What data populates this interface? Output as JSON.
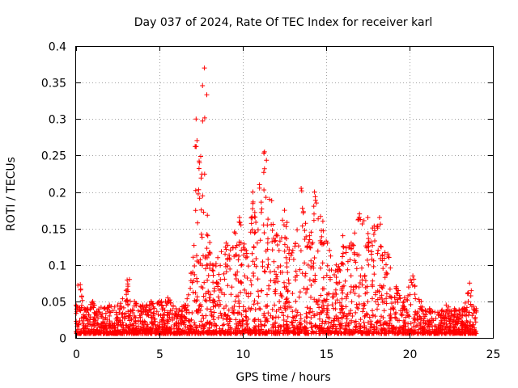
{
  "chart_data": {
    "type": "scatter",
    "title": "Day 037 of 2024, Rate Of TEC Index for receiver karl",
    "xlabel": "GPS time / hours",
    "ylabel": "ROTI / TECUs",
    "xlim": [
      0,
      25
    ],
    "ylim": [
      0,
      0.4
    ],
    "xticks": [
      0,
      5,
      10,
      15,
      20,
      25
    ],
    "xtick_labels": [
      "0",
      "5",
      "10",
      "15",
      "20",
      "25"
    ],
    "yticks": [
      0,
      0.05,
      0.1,
      0.15,
      0.2,
      0.25,
      0.3,
      0.35,
      0.4
    ],
    "ytick_labels": [
      "0",
      "0.05",
      "0.1",
      "0.15",
      "0.2",
      "0.25",
      "0.3",
      "0.35",
      "0.4"
    ],
    "grid": true,
    "marker": "+",
    "color": "#ff0000",
    "x_range_hours": [
      0,
      24
    ],
    "envelope": [
      {
        "x": 0.0,
        "y": 0.045
      },
      {
        "x": 0.25,
        "y": 0.073
      },
      {
        "x": 0.5,
        "y": 0.04
      },
      {
        "x": 1.0,
        "y": 0.05
      },
      {
        "x": 1.5,
        "y": 0.042
      },
      {
        "x": 2.0,
        "y": 0.045
      },
      {
        "x": 2.5,
        "y": 0.045
      },
      {
        "x": 3.0,
        "y": 0.065
      },
      {
        "x": 3.2,
        "y": 0.08
      },
      {
        "x": 3.5,
        "y": 0.05
      },
      {
        "x": 4.0,
        "y": 0.045
      },
      {
        "x": 4.5,
        "y": 0.05
      },
      {
        "x": 5.0,
        "y": 0.05
      },
      {
        "x": 5.5,
        "y": 0.055
      },
      {
        "x": 6.0,
        "y": 0.04
      },
      {
        "x": 6.5,
        "y": 0.045
      },
      {
        "x": 7.0,
        "y": 0.09
      },
      {
        "x": 7.2,
        "y": 0.3
      },
      {
        "x": 7.4,
        "y": 0.24
      },
      {
        "x": 7.7,
        "y": 0.37
      },
      {
        "x": 7.9,
        "y": 0.14
      },
      {
        "x": 8.2,
        "y": 0.1
      },
      {
        "x": 8.5,
        "y": 0.11
      },
      {
        "x": 9.0,
        "y": 0.13
      },
      {
        "x": 9.5,
        "y": 0.145
      },
      {
        "x": 9.8,
        "y": 0.165
      },
      {
        "x": 10.2,
        "y": 0.12
      },
      {
        "x": 10.6,
        "y": 0.2
      },
      {
        "x": 11.0,
        "y": 0.21
      },
      {
        "x": 11.3,
        "y": 0.255
      },
      {
        "x": 11.6,
        "y": 0.19
      },
      {
        "x": 12.0,
        "y": 0.14
      },
      {
        "x": 12.5,
        "y": 0.175
      },
      {
        "x": 13.0,
        "y": 0.12
      },
      {
        "x": 13.5,
        "y": 0.205
      },
      {
        "x": 14.0,
        "y": 0.14
      },
      {
        "x": 14.3,
        "y": 0.2
      },
      {
        "x": 14.8,
        "y": 0.16
      },
      {
        "x": 15.2,
        "y": 0.12
      },
      {
        "x": 15.6,
        "y": 0.1
      },
      {
        "x": 16.0,
        "y": 0.14
      },
      {
        "x": 16.5,
        "y": 0.13
      },
      {
        "x": 17.0,
        "y": 0.17
      },
      {
        "x": 17.5,
        "y": 0.165
      },
      {
        "x": 18.2,
        "y": 0.165
      },
      {
        "x": 18.7,
        "y": 0.115
      },
      {
        "x": 19.2,
        "y": 0.07
      },
      {
        "x": 19.7,
        "y": 0.055
      },
      {
        "x": 20.2,
        "y": 0.085
      },
      {
        "x": 20.7,
        "y": 0.05
      },
      {
        "x": 21.2,
        "y": 0.04
      },
      {
        "x": 21.7,
        "y": 0.035
      },
      {
        "x": 22.2,
        "y": 0.045
      },
      {
        "x": 22.7,
        "y": 0.04
      },
      {
        "x": 23.2,
        "y": 0.04
      },
      {
        "x": 23.6,
        "y": 0.075
      },
      {
        "x": 24.0,
        "y": 0.04
      }
    ]
  }
}
